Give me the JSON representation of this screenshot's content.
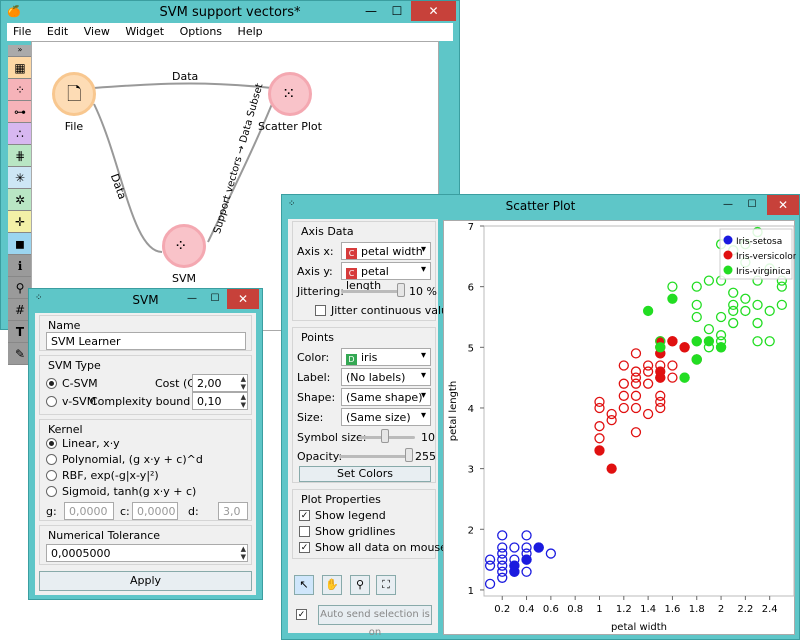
{
  "main_window": {
    "title": "SVM support vectors*",
    "menu": [
      "File",
      "Edit",
      "View",
      "Widget",
      "Options",
      "Help"
    ],
    "nodes": {
      "file": "File",
      "scatter": "Scatter Plot",
      "svm": "SVM"
    },
    "links": {
      "file_scatter": "Data",
      "file_svm": "Data",
      "svm_scatter": "Support vectors → Data Subset"
    }
  },
  "svm_window": {
    "title": "SVM",
    "name_group": "Name",
    "name_value": "SVM Learner",
    "svm_type_group": "SVM Type",
    "c_svm": "C-SVM",
    "v_svm": "v-SVM",
    "cost_label": "Cost (C)",
    "cost_value": "2,00",
    "complexity_label": "Complexity bound (v)",
    "complexity_value": "0,10",
    "kernel_group": "Kernel",
    "kernels": [
      "Linear,   x·y",
      "Polynomial,   (g x·y + c)^d",
      "RBF,   exp(-g|x-y|²)",
      "Sigmoid,   tanh(g x·y + c)"
    ],
    "g_label": "g:",
    "g_value": "0,0000",
    "c_label": "c:",
    "c_value": "0,0000",
    "d_label": "d:",
    "d_value": "3,0",
    "tolerance_group": "Numerical Tolerance",
    "tolerance_value": "0,0005000",
    "apply": "Apply"
  },
  "scatter_window": {
    "title": "Scatter Plot",
    "axis_group": "Axis Data",
    "axis_x_label": "Axis x:",
    "axis_x_value": "petal width",
    "axis_y_label": "Axis y:",
    "axis_y_value": "petal length",
    "jittering_label": "Jittering:",
    "jittering_value": "10 %",
    "jitter_cont": "Jitter continuous values",
    "points_group": "Points",
    "color_label": "Color:",
    "color_value": "iris",
    "label_label": "Label:",
    "label_value": "(No labels)",
    "shape_label": "Shape:",
    "shape_value": "(Same shape)",
    "size_label": "Size:",
    "size_value": "(Same size)",
    "symbol_size_label": "Symbol size:",
    "symbol_size_value": "10",
    "opacity_label": "Opacity:",
    "opacity_value": "255",
    "set_colors": "Set Colors",
    "plot_props_group": "Plot Properties",
    "show_legend": "Show legend",
    "show_gridlines": "Show gridlines",
    "show_all_hover": "Show all data on mouse hover",
    "auto_send": "Auto send selection is on"
  },
  "colors": {
    "setosa": "#1a1adf",
    "versicolor": "#e01010",
    "virginica": "#22dd22",
    "accent": "#5ec6c8"
  },
  "chart_data": {
    "type": "scatter",
    "xlabel": "petal width",
    "ylabel": "petal length",
    "xticks": [
      "0.2",
      "0.4",
      "0.6",
      "0.8",
      "1",
      "1.2",
      "1.4",
      "1.6",
      "1.8",
      "2",
      "2.2",
      "2.4"
    ],
    "yticks": [
      "1",
      "2",
      "3",
      "4",
      "5",
      "6",
      "7"
    ],
    "xlim": [
      0.05,
      2.6
    ],
    "ylim": [
      0.9,
      7.0
    ],
    "legend": [
      "Iris-setosa",
      "Iris-versicolor",
      "Iris-virginica"
    ],
    "legend_position": "top-right",
    "series": [
      {
        "name": "Iris-setosa",
        "color": "#1a1adf",
        "points": [
          [
            0.1,
            1.5
          ],
          [
            0.1,
            1.4
          ],
          [
            0.1,
            1.1
          ],
          [
            0.2,
            1.4
          ],
          [
            0.2,
            1.3
          ],
          [
            0.2,
            1.5
          ],
          [
            0.2,
            1.6
          ],
          [
            0.2,
            1.2
          ],
          [
            0.2,
            1.7
          ],
          [
            0.2,
            1.9
          ],
          [
            0.3,
            1.4
          ],
          [
            0.3,
            1.3
          ],
          [
            0.3,
            1.5
          ],
          [
            0.3,
            1.7
          ],
          [
            0.4,
            1.5
          ],
          [
            0.4,
            1.3
          ],
          [
            0.4,
            1.7
          ],
          [
            0.4,
            1.9
          ],
          [
            0.4,
            1.6
          ],
          [
            0.5,
            1.7
          ],
          [
            0.6,
            1.6
          ]
        ],
        "filled": [
          [
            0.3,
            1.3
          ],
          [
            0.3,
            1.4
          ],
          [
            0.4,
            1.5
          ],
          [
            0.5,
            1.7
          ]
        ]
      },
      {
        "name": "Iris-versicolor",
        "color": "#e01010",
        "points": [
          [
            1.0,
            3.5
          ],
          [
            1.0,
            3.7
          ],
          [
            1.0,
            4.0
          ],
          [
            1.0,
            4.1
          ],
          [
            1.1,
            3.8
          ],
          [
            1.1,
            3.9
          ],
          [
            1.2,
            4.0
          ],
          [
            1.2,
            4.2
          ],
          [
            1.2,
            4.4
          ],
          [
            1.2,
            4.7
          ],
          [
            1.3,
            4.0
          ],
          [
            1.3,
            4.2
          ],
          [
            1.3,
            4.4
          ],
          [
            1.3,
            4.5
          ],
          [
            1.3,
            4.6
          ],
          [
            1.3,
            4.9
          ],
          [
            1.3,
            3.6
          ],
          [
            1.4,
            4.4
          ],
          [
            1.4,
            4.6
          ],
          [
            1.4,
            4.7
          ],
          [
            1.4,
            3.9
          ],
          [
            1.5,
            4.0
          ],
          [
            1.5,
            4.2
          ],
          [
            1.5,
            4.5
          ],
          [
            1.5,
            4.7
          ],
          [
            1.5,
            4.9
          ],
          [
            1.6,
            4.5
          ],
          [
            1.6,
            4.7
          ],
          [
            1.6,
            5.1
          ],
          [
            1.7,
            5.0
          ],
          [
            1.8,
            4.8
          ],
          [
            1.5,
            4.1
          ],
          [
            1.5,
            5.0
          ]
        ],
        "filled": [
          [
            1.0,
            3.3
          ],
          [
            1.1,
            3.0
          ],
          [
            1.5,
            4.5
          ],
          [
            1.5,
            4.6
          ],
          [
            1.5,
            4.9
          ],
          [
            1.6,
            5.1
          ],
          [
            1.7,
            5.0
          ],
          [
            1.5,
            5.1
          ]
        ]
      },
      {
        "name": "Iris-virginica",
        "color": "#22dd22",
        "points": [
          [
            1.5,
            5.1
          ],
          [
            1.7,
            4.5
          ],
          [
            1.8,
            4.8
          ],
          [
            1.8,
            5.1
          ],
          [
            1.8,
            5.5
          ],
          [
            1.8,
            5.7
          ],
          [
            1.8,
            6.0
          ],
          [
            1.9,
            5.0
          ],
          [
            1.9,
            5.3
          ],
          [
            2.0,
            5.0
          ],
          [
            2.0,
            5.1
          ],
          [
            2.0,
            5.2
          ],
          [
            2.0,
            5.5
          ],
          [
            2.0,
            6.1
          ],
          [
            2.0,
            6.7
          ],
          [
            2.1,
            5.4
          ],
          [
            2.1,
            5.6
          ],
          [
            2.1,
            5.7
          ],
          [
            2.1,
            5.9
          ],
          [
            2.1,
            6.6
          ],
          [
            2.2,
            5.6
          ],
          [
            2.2,
            5.8
          ],
          [
            2.2,
            6.4
          ],
          [
            2.3,
            5.1
          ],
          [
            2.3,
            5.4
          ],
          [
            2.3,
            5.7
          ],
          [
            2.3,
            6.1
          ],
          [
            2.3,
            6.9
          ],
          [
            2.4,
            5.1
          ],
          [
            2.4,
            5.6
          ],
          [
            2.5,
            5.7
          ],
          [
            2.5,
            6.1
          ],
          [
            1.9,
            6.1
          ],
          [
            1.6,
            6.0
          ],
          [
            2.2,
            6.7
          ],
          [
            2.4,
            6.3
          ],
          [
            2.5,
            6.0
          ]
        ],
        "filled": [
          [
            1.4,
            5.6
          ],
          [
            1.5,
            5.0
          ],
          [
            1.6,
            5.8
          ],
          [
            1.7,
            4.5
          ],
          [
            1.8,
            4.8
          ],
          [
            1.8,
            5.1
          ],
          [
            1.9,
            5.1
          ],
          [
            2.0,
            5.0
          ]
        ]
      }
    ]
  }
}
